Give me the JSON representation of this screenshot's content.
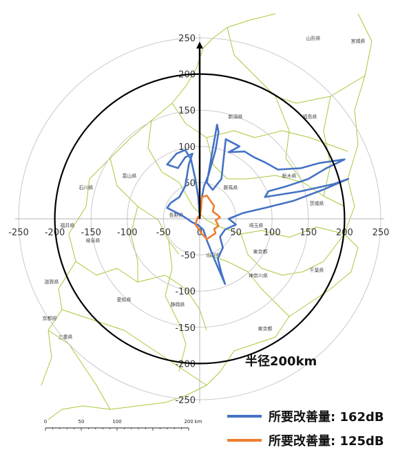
{
  "axes": {
    "x_ticks": [
      -250,
      -200,
      -150,
      -100,
      -50,
      0,
      50,
      100,
      150,
      200,
      250
    ],
    "y_ticks": [
      250,
      200,
      150,
      100,
      50,
      -50,
      -100,
      -150,
      -200,
      -250
    ],
    "x_tick_labels": [
      "-250",
      "-200",
      "-150",
      "-100",
      "-50",
      "0",
      "50",
      "100",
      "150",
      "200",
      "250"
    ],
    "y_tick_labels": [
      "250",
      "200",
      "150",
      "100",
      "50",
      "-50",
      "-100",
      "-150",
      "-200",
      "-250"
    ],
    "ring_radii_km": [
      50,
      100,
      150,
      200,
      250
    ]
  },
  "radius_label": "半径200km",
  "highlight_radius_km": 200,
  "prefectures": [
    {
      "name": "山形県"
    },
    {
      "name": "宮城県"
    },
    {
      "name": "新潟県"
    },
    {
      "name": "福島県"
    },
    {
      "name": "富山県"
    },
    {
      "name": "石川県"
    },
    {
      "name": "栃木県"
    },
    {
      "name": "群馬県"
    },
    {
      "name": "茨城県"
    },
    {
      "name": "福井県"
    },
    {
      "name": "長野県"
    },
    {
      "name": "埼玉県"
    },
    {
      "name": "岐阜県"
    },
    {
      "name": "山梨県"
    },
    {
      "name": "東京都"
    },
    {
      "name": "千葉県"
    },
    {
      "name": "神奈川県"
    },
    {
      "name": "滋賀県"
    },
    {
      "name": "愛知県"
    },
    {
      "name": "静岡県"
    },
    {
      "name": "京都府"
    },
    {
      "name": "三重県"
    },
    {
      "name": "東京都"
    }
  ],
  "scale_bar": {
    "ticks": [
      "0",
      "50",
      "100",
      "200"
    ],
    "unit": "km"
  },
  "legend": [
    {
      "label": "所要改善量: 162dB",
      "color": "#4472C4"
    },
    {
      "label": "所要改善量: 125dB",
      "color": "#ED7D31"
    }
  ],
  "chart_data": {
    "type": "polar-line",
    "unit": "km",
    "series": [
      {
        "name": "所要改善量: 162dB",
        "color": "#4472C4",
        "points_km": [
          [
            0,
            5
          ],
          [
            3,
            30
          ],
          [
            6,
            45
          ],
          [
            12,
            60
          ],
          [
            22,
            95
          ],
          [
            26,
            120
          ],
          [
            24,
            130
          ],
          [
            10,
            50
          ],
          [
            18,
            40
          ],
          [
            30,
            55
          ],
          [
            36,
            110
          ],
          [
            55,
            100
          ],
          [
            40,
            92
          ],
          [
            62,
            93
          ],
          [
            75,
            85
          ],
          [
            90,
            78
          ],
          [
            108,
            68
          ],
          [
            140,
            70
          ],
          [
            165,
            77
          ],
          [
            200,
            82
          ],
          [
            175,
            70
          ],
          [
            150,
            55
          ],
          [
            120,
            45
          ],
          [
            95,
            38
          ],
          [
            90,
            30
          ],
          [
            140,
            38
          ],
          [
            185,
            48
          ],
          [
            205,
            55
          ],
          [
            170,
            40
          ],
          [
            130,
            25
          ],
          [
            90,
            15
          ],
          [
            60,
            8
          ],
          [
            40,
            0
          ],
          [
            50,
            -8
          ],
          [
            35,
            -15
          ],
          [
            28,
            -25
          ],
          [
            32,
            -40
          ],
          [
            25,
            -55
          ],
          [
            30,
            -75
          ],
          [
            35,
            -90
          ],
          [
            20,
            -55
          ],
          [
            10,
            -30
          ],
          [
            5,
            -15
          ],
          [
            -3,
            -8
          ],
          [
            -10,
            -5
          ],
          [
            -25,
            5
          ],
          [
            -45,
            15
          ],
          [
            -40,
            22
          ],
          [
            -28,
            30
          ],
          [
            -20,
            45
          ],
          [
            -15,
            75
          ],
          [
            -10,
            90
          ],
          [
            -20,
            85
          ],
          [
            -30,
            70
          ],
          [
            -45,
            75
          ],
          [
            -32,
            90
          ],
          [
            -20,
            95
          ],
          [
            -12,
            82
          ],
          [
            -6,
            55
          ],
          [
            -2,
            30
          ],
          [
            0,
            5
          ]
        ]
      },
      {
        "name": "所要改善量: 125dB",
        "color": "#ED7D31",
        "points_km": [
          [
            0,
            0
          ],
          [
            2,
            15
          ],
          [
            3,
            30
          ],
          [
            10,
            32
          ],
          [
            14,
            26
          ],
          [
            20,
            18
          ],
          [
            18,
            10
          ],
          [
            24,
            6
          ],
          [
            28,
            2
          ],
          [
            22,
            -2
          ],
          [
            26,
            -10
          ],
          [
            20,
            -14
          ],
          [
            22,
            -20
          ],
          [
            16,
            -24
          ],
          [
            10,
            -28
          ],
          [
            4,
            -22
          ],
          [
            0,
            -16
          ],
          [
            -3,
            -12
          ],
          [
            -6,
            -8
          ],
          [
            -4,
            -2
          ],
          [
            -2,
            3
          ],
          [
            0,
            0
          ]
        ]
      }
    ]
  }
}
